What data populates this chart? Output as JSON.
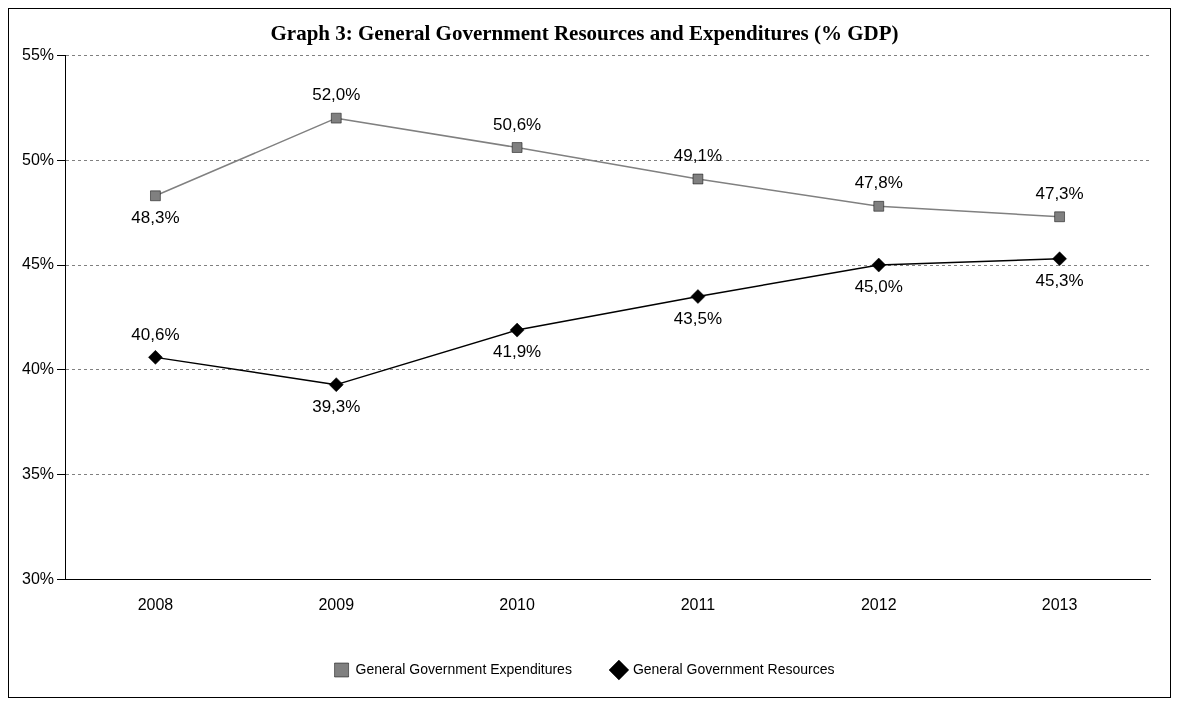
{
  "chart_data": {
    "type": "line",
    "title": "Graph 3: General Government Resources and Expenditures (% GDP)",
    "categories": [
      "2008",
      "2009",
      "2010",
      "2011",
      "2012",
      "2013"
    ],
    "series": [
      {
        "name": "General Government Expenditures",
        "color": "#808080",
        "marker": "square",
        "values": [
          48.3,
          52.0,
          50.6,
          49.1,
          47.8,
          47.3
        ],
        "value_labels": [
          "48,3%",
          "52,0%",
          "50,6%",
          "49,1%",
          "47,8%",
          "47,3%"
        ]
      },
      {
        "name": "General Government Resources",
        "color": "#000000",
        "marker": "diamond",
        "values": [
          40.6,
          39.3,
          41.9,
          43.5,
          45.0,
          45.3
        ],
        "value_labels": [
          "40,6%",
          "39,3%",
          "41,9%",
          "43,5%",
          "45,0%",
          "45,3%"
        ]
      }
    ],
    "ylim": [
      30,
      55
    ],
    "yticks": [
      {
        "value": 30,
        "label": "30%"
      },
      {
        "value": 35,
        "label": "35%"
      },
      {
        "value": 40,
        "label": "40%"
      },
      {
        "value": 45,
        "label": "45%"
      },
      {
        "value": 50,
        "label": "50%"
      },
      {
        "value": 55,
        "label": "55%"
      }
    ],
    "grid": "y",
    "line_style": "solid",
    "legend": "bottom"
  }
}
